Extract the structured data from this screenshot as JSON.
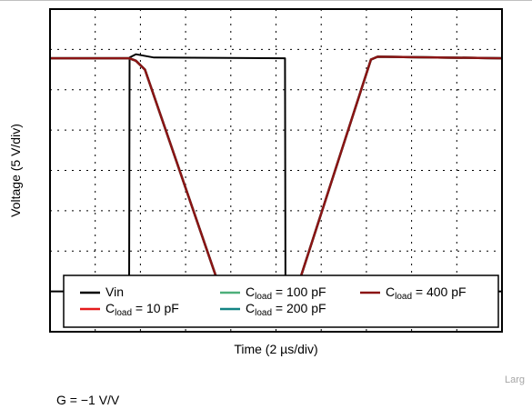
{
  "chart_data": {
    "type": "line",
    "xlabel": "Time (2 µs/div)",
    "ylabel": "Voltage (5 V/div)",
    "xlim": [
      0,
      10
    ],
    "ylim": [
      0,
      8
    ],
    "grid": true,
    "legend_placement": "bottom",
    "series": [
      {
        "name": "Vin",
        "color": "#000000",
        "points": [
          [
            0,
            1
          ],
          [
            1.75,
            1
          ],
          [
            1.76,
            6.8
          ],
          [
            1.9,
            6.88
          ],
          [
            2.3,
            6.8
          ],
          [
            5.2,
            6.78
          ],
          [
            5.21,
            1.02
          ],
          [
            5.5,
            0.95
          ],
          [
            6.5,
            0.97
          ],
          [
            10,
            1
          ]
        ]
      },
      {
        "name": "C_load = 10 pF",
        "color": "#e41a1c",
        "points": [
          [
            0,
            6.78
          ],
          [
            1.75,
            6.78
          ],
          [
            1.9,
            6.72
          ],
          [
            2.1,
            6.5
          ],
          [
            3.8,
            0.95
          ],
          [
            4.5,
            0.98
          ],
          [
            5.2,
            1.0
          ],
          [
            5.35,
            1.05
          ],
          [
            5.5,
            1.2
          ],
          [
            7.1,
            6.75
          ],
          [
            7.25,
            6.82
          ],
          [
            10,
            6.78
          ]
        ]
      },
      {
        "name": "C_load = 100 pF",
        "color": "#4daf7a",
        "points": [
          [
            0,
            6.78
          ],
          [
            1.75,
            6.78
          ],
          [
            1.9,
            6.72
          ],
          [
            2.1,
            6.5
          ],
          [
            3.8,
            0.95
          ],
          [
            4.5,
            0.98
          ],
          [
            5.2,
            1.0
          ],
          [
            5.35,
            1.05
          ],
          [
            5.5,
            1.2
          ],
          [
            7.1,
            6.75
          ],
          [
            7.25,
            6.82
          ],
          [
            10,
            6.78
          ]
        ]
      },
      {
        "name": "C_load = 200 pF",
        "color": "#138484",
        "points": [
          [
            0,
            6.78
          ],
          [
            1.75,
            6.78
          ],
          [
            1.9,
            6.72
          ],
          [
            2.1,
            6.5
          ],
          [
            3.8,
            0.95
          ],
          [
            4.5,
            0.98
          ],
          [
            5.2,
            1.0
          ],
          [
            5.35,
            1.05
          ],
          [
            5.5,
            1.2
          ],
          [
            7.1,
            6.75
          ],
          [
            7.25,
            6.82
          ],
          [
            10,
            6.78
          ]
        ]
      },
      {
        "name": "C_load = 400 pF",
        "color": "#8b1414",
        "points": [
          [
            0,
            6.78
          ],
          [
            1.75,
            6.78
          ],
          [
            1.9,
            6.72
          ],
          [
            2.1,
            6.5
          ],
          [
            3.8,
            0.95
          ],
          [
            4.5,
            0.98
          ],
          [
            5.2,
            1.0
          ],
          [
            5.35,
            1.05
          ],
          [
            5.5,
            1.2
          ],
          [
            7.1,
            6.75
          ],
          [
            7.25,
            6.82
          ],
          [
            10,
            6.78
          ]
        ]
      }
    ],
    "legend": [
      {
        "label_main": "Vin",
        "label_sub": "",
        "label_tail": "",
        "color": "#000000"
      },
      {
        "label_main": "C",
        "label_sub": "load",
        "label_tail": " = 100 pF",
        "color": "#4daf7a"
      },
      {
        "label_main": "C",
        "label_sub": "load",
        "label_tail": " = 400 pF",
        "color": "#8b1414"
      },
      {
        "label_main": "C",
        "label_sub": "load",
        "label_tail": " = 10 pF",
        "color": "#e41a1c"
      },
      {
        "label_main": "C",
        "label_sub": "load",
        "label_tail": " = 200 pF",
        "color": "#138484"
      }
    ]
  },
  "corner_note": "Larg",
  "caption": "G = −1 V/V"
}
